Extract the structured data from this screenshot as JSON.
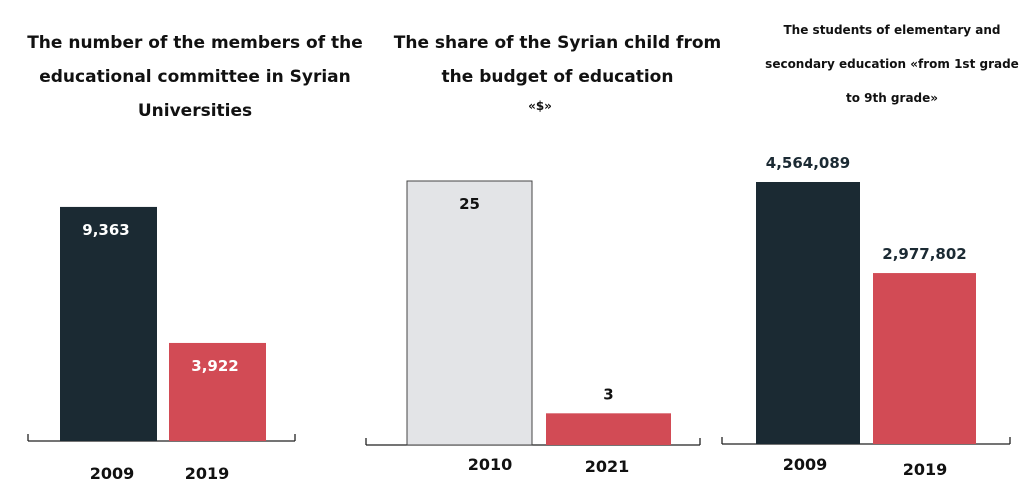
{
  "chart_data": [
    {
      "type": "bar",
      "title": "The number of the members of the educational committee in Syrian Universities",
      "categories": [
        "2009",
        "2019"
      ],
      "values": [
        9363,
        3922
      ],
      "value_labels": [
        "9,363",
        "3,922"
      ],
      "colors": [
        "#1b2a33",
        "#d24b55"
      ],
      "label_inside": true,
      "label_colors": [
        "#ffffff",
        "#ffffff"
      ],
      "ylim": [
        0,
        10000
      ]
    },
    {
      "type": "bar",
      "title": "The share of the Syrian child from the budget of education",
      "unit": "«$»",
      "categories": [
        "2010",
        "2021"
      ],
      "values": [
        25,
        3
      ],
      "value_labels": [
        "25",
        "3"
      ],
      "colors": [
        "#e3e4e7",
        "#d24b55"
      ],
      "label_inside_first": true,
      "label_colors": [
        "#111111",
        "#111111"
      ],
      "ylim": [
        0,
        25
      ]
    },
    {
      "type": "bar",
      "title": "The students of elementary and secondary education «from 1st grade to 9th grade»",
      "categories": [
        "2009",
        "2019"
      ],
      "values": [
        4564089,
        2977802
      ],
      "value_labels": [
        "4,564,089",
        "2,977,802"
      ],
      "colors": [
        "#1b2a33",
        "#d24b55"
      ],
      "label_inside": false,
      "label_colors": [
        "#1b2a33",
        "#1b2a33"
      ],
      "ylim": [
        0,
        4564089
      ]
    }
  ]
}
